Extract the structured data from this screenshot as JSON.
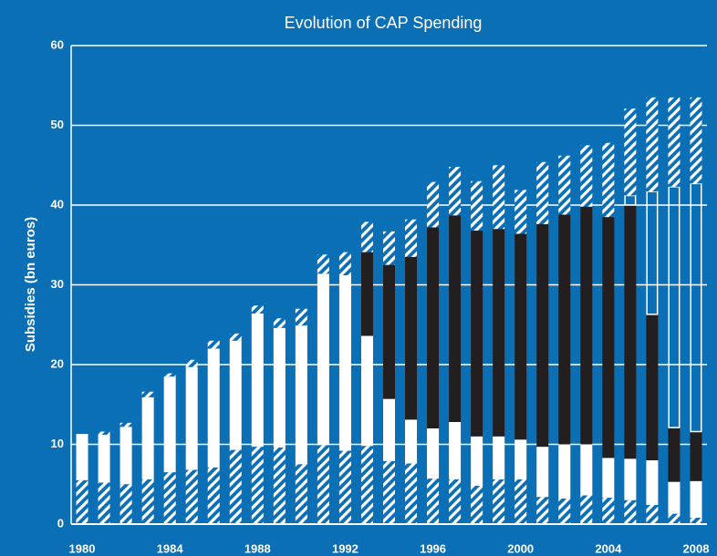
{
  "chart_data": {
    "type": "stacked-bar",
    "title": "Evolution of CAP Spending",
    "y_label": "Subsidies (bn euros)",
    "categories": [
      "1980",
      null,
      null,
      null,
      "1984",
      null,
      null,
      null,
      "1988",
      null,
      null,
      null,
      "1992",
      null,
      null,
      null,
      "1996",
      null,
      null,
      null,
      "2000",
      null,
      null,
      null,
      "2004",
      null,
      null,
      null,
      "2008"
    ],
    "series": [
      {
        "color": "#ffffff",
        "pattern": "hatch",
        "values": [
          5.5,
          5.2,
          5.0,
          5.6,
          6.5,
          6.8,
          7.1,
          9.3,
          9.7,
          9.6,
          7.5,
          9.9,
          9.2,
          9.8,
          7.9,
          7.6,
          5.7,
          5.6,
          4.8,
          5.6,
          5.6,
          3.4,
          3.2,
          3.6,
          3.3,
          3.0,
          2.4,
          1.3,
          0.8
        ]
      },
      {
        "color": "#ffffff",
        "pattern": "solid",
        "values": [
          5.8,
          6.0,
          7.2,
          10.3,
          12.0,
          12.9,
          14.9,
          13.7,
          16.7,
          15.0,
          17.4,
          21.5,
          22.0,
          13.8,
          7.8,
          5.5,
          6.3,
          7.2,
          6.2,
          5.4,
          5.0,
          6.3,
          6.8,
          6.4,
          5.0,
          5.2,
          5.6,
          4.0,
          4.6
        ]
      },
      {
        "color": "#231f20",
        "pattern": "solid",
        "values": [
          0,
          0,
          0,
          0,
          0,
          0,
          0,
          0,
          0,
          0,
          0,
          0,
          0,
          10.5,
          16.8,
          20.4,
          25.2,
          25.9,
          25.8,
          26.0,
          25.8,
          27.9,
          28.8,
          29.8,
          30.2,
          31.8,
          18.3,
          6.8,
          6.2
        ]
      },
      {
        "color": "#ffffff",
        "pattern": "outline",
        "values": [
          0,
          0,
          0,
          0,
          0,
          0,
          0,
          0,
          0,
          0,
          0,
          0,
          0,
          0,
          0,
          0,
          0,
          0,
          0,
          0,
          0,
          0,
          0,
          0,
          0,
          1.2,
          15.4,
          30.2,
          31.1
        ]
      },
      {
        "color": "#ffffff",
        "pattern": "hatch",
        "values": [
          0,
          0.4,
          0.5,
          0.7,
          0.4,
          0.9,
          1.0,
          0.9,
          1.0,
          1.2,
          2.1,
          2.4,
          2.9,
          3.8,
          4.2,
          4.7,
          5.7,
          6.1,
          6.2,
          8.0,
          5.5,
          7.8,
          7.4,
          7.7,
          9.3,
          10.9,
          11.8,
          11.2,
          10.8
        ]
      }
    ],
    "ylim": [
      0,
      60
    ],
    "yticks": [
      0,
      10,
      20,
      30,
      40,
      50,
      60
    ],
    "grid": true
  }
}
